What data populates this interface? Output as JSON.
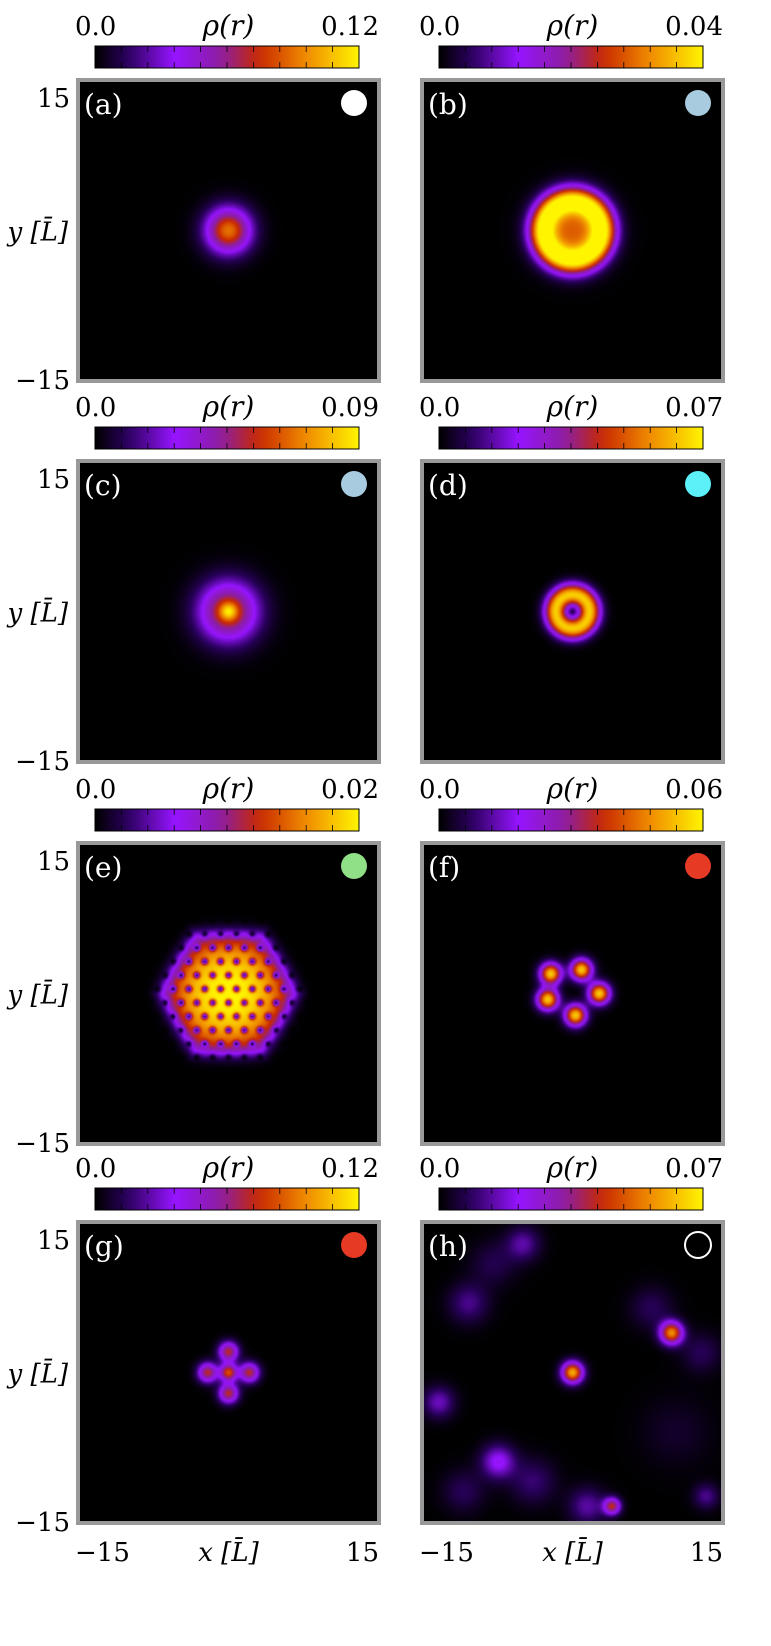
{
  "chart_data": [
    {
      "type": "heatmap",
      "panel_label": "(a)",
      "colorbar": {
        "label": "ρ(r)",
        "min_label": "0.0",
        "max_label": "0.12",
        "min": 0.0,
        "max": 0.12
      },
      "xlim": [
        -15,
        15
      ],
      "ylim": [
        -15,
        15
      ],
      "y_ticks": [
        "15",
        "−15"
      ],
      "x_ticks": [],
      "ylabel": "y [L̄]",
      "xlabel": "",
      "marker": {
        "fill": "#ffffff",
        "filled": true
      },
      "blobs": [
        {
          "x": 0,
          "y": 0,
          "sigma": 1.6,
          "amp": 0.09
        }
      ]
    },
    {
      "type": "heatmap",
      "panel_label": "(b)",
      "colorbar": {
        "label": "ρ(r)",
        "min_label": "0.0",
        "max_label": "0.04",
        "min": 0.0,
        "max": 0.04
      },
      "xlim": [
        -15,
        15
      ],
      "ylim": [
        -15,
        15
      ],
      "y_ticks": [],
      "x_ticks": [],
      "ylabel": "",
      "xlabel": "",
      "marker": {
        "fill": "#a9cbe0",
        "filled": true
      },
      "blobs": [
        {
          "x": 0,
          "y": 0,
          "sigma": 2.2,
          "amp": 0.028
        }
      ],
      "rings": [
        {
          "x": 0,
          "y": 0,
          "r": 3.0,
          "w": 1.0,
          "amp": 0.035
        }
      ]
    },
    {
      "type": "heatmap",
      "panel_label": "(c)",
      "colorbar": {
        "label": "ρ(r)",
        "min_label": "0.0",
        "max_label": "0.09",
        "min": 0.0,
        "max": 0.09
      },
      "xlim": [
        -15,
        15
      ],
      "ylim": [
        -15,
        15
      ],
      "y_ticks": [
        "15",
        "−15"
      ],
      "x_ticks": [],
      "ylabel": "y [L̄]",
      "xlabel": "",
      "marker": {
        "fill": "#a9cbe0",
        "filled": true
      },
      "blobs": [
        {
          "x": 0,
          "y": 0,
          "sigma": 2.1,
          "amp": 0.06
        },
        {
          "x": 0,
          "y": 0,
          "sigma": 0.6,
          "amp": 0.03
        }
      ]
    },
    {
      "type": "heatmap",
      "panel_label": "(d)",
      "colorbar": {
        "label": "ρ(r)",
        "min_label": "0.0",
        "max_label": "0.07",
        "min": 0.0,
        "max": 0.07
      },
      "xlim": [
        -15,
        15
      ],
      "ylim": [
        -15,
        15
      ],
      "y_ticks": [],
      "x_ticks": [],
      "ylabel": "",
      "xlabel": "",
      "marker": {
        "fill": "#5cf0f8",
        "filled": true
      },
      "blobs": [],
      "rings": [
        {
          "x": 0,
          "y": 0,
          "r": 1.7,
          "w": 0.8,
          "amp": 0.065
        }
      ]
    },
    {
      "type": "heatmap",
      "panel_label": "(e)",
      "colorbar": {
        "label": "ρ(r)",
        "min_label": "0.0",
        "max_label": "0.02",
        "min": 0.0,
        "max": 0.02
      },
      "xlim": [
        -15,
        15
      ],
      "ylim": [
        -15,
        15
      ],
      "y_ticks": [
        "15",
        "−15"
      ],
      "x_ticks": [],
      "ylabel": "y [L̄]",
      "xlabel": "",
      "marker": {
        "fill": "#90e088",
        "filled": true
      },
      "hexagon": {
        "x": 0,
        "y": 0,
        "R": 6.2,
        "amp_center": 0.02,
        "amp_edge": 0.008,
        "vortex_spacing": 1.6
      },
      "blobs": []
    },
    {
      "type": "heatmap",
      "panel_label": "(f)",
      "colorbar": {
        "label": "ρ(r)",
        "min_label": "0.0",
        "max_label": "0.06",
        "min": 0.0,
        "max": 0.06
      },
      "xlim": [
        -15,
        15
      ],
      "ylim": [
        -15,
        15
      ],
      "y_ticks": [],
      "x_ticks": [],
      "ylabel": "",
      "xlabel": "",
      "marker": {
        "fill": "#e63a25",
        "filled": true
      },
      "blobs": [
        {
          "x": -2.2,
          "y": 2.0,
          "sigma": 0.75,
          "amp": 0.055
        },
        {
          "x": 0.9,
          "y": 2.4,
          "sigma": 0.75,
          "amp": 0.055
        },
        {
          "x": 2.7,
          "y": 0.0,
          "sigma": 0.75,
          "amp": 0.055
        },
        {
          "x": 0.3,
          "y": -2.2,
          "sigma": 0.75,
          "amp": 0.055
        },
        {
          "x": -2.5,
          "y": -0.6,
          "sigma": 0.75,
          "amp": 0.055
        }
      ]
    },
    {
      "type": "heatmap",
      "panel_label": "(g)",
      "colorbar": {
        "label": "ρ(r)",
        "min_label": "0.0",
        "max_label": "0.12",
        "min": 0.0,
        "max": 0.12
      },
      "xlim": [
        -15,
        15
      ],
      "ylim": [
        -15,
        15
      ],
      "y_ticks": [
        "15",
        "−15"
      ],
      "x_ticks": [
        "−15",
        "15"
      ],
      "ylabel": "y [L̄]",
      "xlabel": "x [L̄]",
      "marker": {
        "fill": "#e63a25",
        "filled": true
      },
      "blobs": [
        {
          "x": 0,
          "y": 0,
          "sigma": 0.6,
          "amp": 0.08
        },
        {
          "x": 0,
          "y": 2.1,
          "sigma": 0.7,
          "amp": 0.07
        },
        {
          "x": 2.1,
          "y": 0,
          "sigma": 0.7,
          "amp": 0.07
        },
        {
          "x": 0,
          "y": -2.1,
          "sigma": 0.7,
          "amp": 0.07
        },
        {
          "x": -2.1,
          "y": 0,
          "sigma": 0.7,
          "amp": 0.07
        }
      ]
    },
    {
      "type": "heatmap",
      "panel_label": "(h)",
      "colorbar": {
        "label": "ρ(r)",
        "min_label": "0.0",
        "max_label": "0.07",
        "min": 0.0,
        "max": 0.07
      },
      "xlim": [
        -15,
        15
      ],
      "ylim": [
        -15,
        15
      ],
      "y_ticks": [],
      "x_ticks": [
        "−15",
        "15"
      ],
      "ylabel": "",
      "xlabel": "x [L̄]",
      "marker": {
        "fill": "none",
        "filled": false,
        "stroke": "#ffffff"
      },
      "blobs": [
        {
          "x": 0,
          "y": 0,
          "sigma": 0.75,
          "amp": 0.06
        },
        {
          "x": 10.0,
          "y": 4.0,
          "sigma": 0.8,
          "amp": 0.055
        },
        {
          "x": 4.0,
          "y": -13.5,
          "sigma": 0.6,
          "amp": 0.04
        },
        {
          "x": -5.0,
          "y": 13.0,
          "sigma": 1.2,
          "amp": 0.014
        },
        {
          "x": -10.5,
          "y": 7.0,
          "sigma": 1.4,
          "amp": 0.012
        },
        {
          "x": -13.5,
          "y": -3.0,
          "sigma": 1.1,
          "amp": 0.016
        },
        {
          "x": -7.5,
          "y": -9.0,
          "sigma": 1.2,
          "amp": 0.022
        },
        {
          "x": -4.0,
          "y": -11.0,
          "sigma": 1.6,
          "amp": 0.01
        },
        {
          "x": 1.5,
          "y": -13.5,
          "sigma": 1.3,
          "amp": 0.014
        },
        {
          "x": 13.5,
          "y": -12.5,
          "sigma": 0.9,
          "amp": 0.012
        },
        {
          "x": 13.0,
          "y": 2.0,
          "sigma": 1.4,
          "amp": 0.008
        },
        {
          "x": 8.0,
          "y": 6.5,
          "sigma": 1.5,
          "amp": 0.008
        },
        {
          "x": 10.5,
          "y": -6.0,
          "sigma": 2.5,
          "amp": 0.004
        },
        {
          "x": -11.0,
          "y": -12.0,
          "sigma": 1.5,
          "amp": 0.008
        },
        {
          "x": -8.0,
          "y": 11.0,
          "sigma": 1.6,
          "amp": 0.007
        }
      ]
    }
  ]
}
